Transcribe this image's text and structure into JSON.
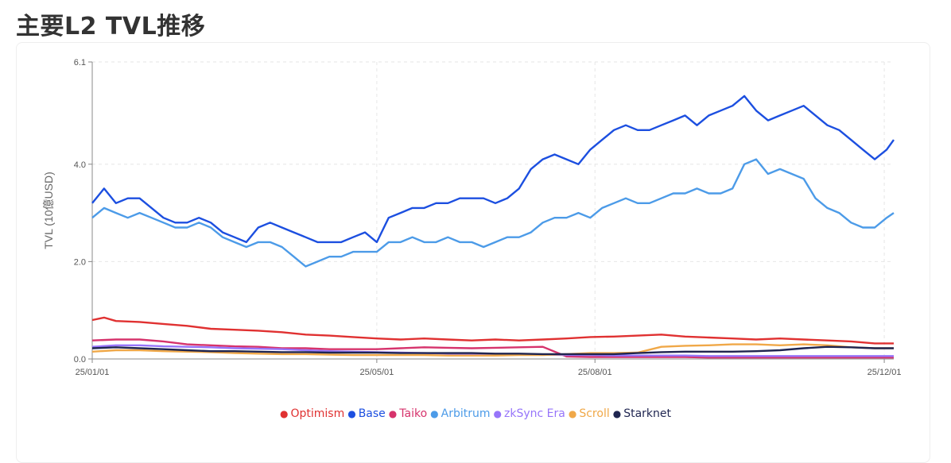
{
  "header": {
    "title": "主要L2 TVL推移"
  },
  "chart_data": {
    "type": "line",
    "title": "主要L2 TVL推移",
    "xlabel": "",
    "ylabel": "TVL (10億USD)",
    "ylim": [
      0,
      6.1
    ],
    "yticks": [
      {
        "value": 0,
        "label": "0.0"
      },
      {
        "value": 2,
        "label": "2.0"
      },
      {
        "value": 4,
        "label": "4.0"
      },
      {
        "value": 6.1,
        "label": "6.1"
      }
    ],
    "xlim": [
      0,
      338
    ],
    "xticks": [
      {
        "value": 0,
        "label": "25/01/01"
      },
      {
        "value": 120,
        "label": "25/05/01"
      },
      {
        "value": 212,
        "label": "25/08/01"
      },
      {
        "value": 334,
        "label": "25/12/01"
      }
    ],
    "grid": true,
    "legend_position": "bottom",
    "series": [
      {
        "name": "Optimism",
        "color": "#e03131",
        "x": [
          0,
          5,
          10,
          20,
          30,
          40,
          50,
          60,
          70,
          80,
          90,
          100,
          110,
          120,
          130,
          140,
          150,
          160,
          170,
          180,
          190,
          200,
          210,
          220,
          230,
          240,
          250,
          260,
          270,
          280,
          290,
          300,
          310,
          320,
          330,
          338
        ],
        "values": [
          0.8,
          0.85,
          0.78,
          0.76,
          0.72,
          0.68,
          0.62,
          0.6,
          0.58,
          0.55,
          0.5,
          0.48,
          0.45,
          0.42,
          0.4,
          0.42,
          0.4,
          0.38,
          0.4,
          0.38,
          0.4,
          0.42,
          0.45,
          0.46,
          0.48,
          0.5,
          0.46,
          0.44,
          0.42,
          0.4,
          0.42,
          0.4,
          0.38,
          0.36,
          0.32,
          0.32
        ]
      },
      {
        "name": "Base",
        "color": "#1c4fe0",
        "x": [
          0,
          5,
          10,
          15,
          20,
          25,
          30,
          35,
          40,
          45,
          50,
          55,
          60,
          65,
          70,
          75,
          80,
          85,
          90,
          95,
          100,
          105,
          110,
          115,
          120,
          125,
          130,
          135,
          140,
          145,
          150,
          155,
          160,
          165,
          170,
          175,
          180,
          185,
          190,
          195,
          200,
          205,
          210,
          215,
          220,
          225,
          230,
          235,
          240,
          245,
          250,
          255,
          260,
          265,
          270,
          275,
          280,
          285,
          290,
          295,
          300,
          305,
          310,
          315,
          320,
          325,
          330,
          335,
          338
        ],
        "values": [
          3.2,
          3.5,
          3.2,
          3.3,
          3.3,
          3.1,
          2.9,
          2.8,
          2.8,
          2.9,
          2.8,
          2.6,
          2.5,
          2.4,
          2.7,
          2.8,
          2.7,
          2.6,
          2.5,
          2.4,
          2.4,
          2.4,
          2.5,
          2.6,
          2.4,
          2.9,
          3.0,
          3.1,
          3.1,
          3.2,
          3.2,
          3.3,
          3.3,
          3.3,
          3.2,
          3.3,
          3.5,
          3.9,
          4.1,
          4.2,
          4.1,
          4.0,
          4.3,
          4.5,
          4.7,
          4.8,
          4.7,
          4.7,
          4.8,
          4.9,
          5.0,
          4.8,
          5.0,
          5.1,
          5.2,
          5.4,
          5.1,
          4.9,
          5.0,
          5.1,
          5.2,
          5.0,
          4.8,
          4.7,
          4.5,
          4.3,
          4.1,
          4.3,
          4.5
        ]
      },
      {
        "name": "Taiko",
        "color": "#d6336c",
        "x": [
          0,
          10,
          20,
          30,
          40,
          50,
          60,
          70,
          80,
          90,
          100,
          110,
          120,
          130,
          140,
          150,
          160,
          170,
          180,
          190,
          200,
          210,
          220,
          230,
          240,
          250,
          260,
          270,
          280,
          290,
          300,
          310,
          320,
          330,
          338
        ],
        "values": [
          0.38,
          0.4,
          0.4,
          0.36,
          0.3,
          0.28,
          0.26,
          0.25,
          0.22,
          0.22,
          0.2,
          0.2,
          0.2,
          0.22,
          0.24,
          0.23,
          0.22,
          0.23,
          0.24,
          0.25,
          0.05,
          0.04,
          0.04,
          0.04,
          0.04,
          0.04,
          0.03,
          0.03,
          0.03,
          0.03,
          0.03,
          0.03,
          0.03,
          0.03,
          0.03
        ]
      },
      {
        "name": "Arbitrum",
        "color": "#4c9be8",
        "x": [
          0,
          5,
          10,
          15,
          20,
          25,
          30,
          35,
          40,
          45,
          50,
          55,
          60,
          65,
          70,
          75,
          80,
          85,
          90,
          95,
          100,
          105,
          110,
          115,
          120,
          125,
          130,
          135,
          140,
          145,
          150,
          155,
          160,
          165,
          170,
          175,
          180,
          185,
          190,
          195,
          200,
          205,
          210,
          215,
          220,
          225,
          230,
          235,
          240,
          245,
          250,
          255,
          260,
          265,
          270,
          275,
          280,
          285,
          290,
          295,
          300,
          305,
          310,
          315,
          320,
          325,
          330,
          335,
          338
        ],
        "values": [
          2.9,
          3.1,
          3.0,
          2.9,
          3.0,
          2.9,
          2.8,
          2.7,
          2.7,
          2.8,
          2.7,
          2.5,
          2.4,
          2.3,
          2.4,
          2.4,
          2.3,
          2.1,
          1.9,
          2.0,
          2.1,
          2.1,
          2.2,
          2.2,
          2.2,
          2.4,
          2.4,
          2.5,
          2.4,
          2.4,
          2.5,
          2.4,
          2.4,
          2.3,
          2.4,
          2.5,
          2.5,
          2.6,
          2.8,
          2.9,
          2.9,
          3.0,
          2.9,
          3.1,
          3.2,
          3.3,
          3.2,
          3.2,
          3.3,
          3.4,
          3.4,
          3.5,
          3.4,
          3.4,
          3.5,
          4.0,
          4.1,
          3.8,
          3.9,
          3.8,
          3.7,
          3.3,
          3.1,
          3.0,
          2.8,
          2.7,
          2.7,
          2.9,
          3.0
        ]
      },
      {
        "name": "zkSync Era",
        "color": "#9775fa",
        "x": [
          0,
          10,
          20,
          30,
          40,
          50,
          60,
          70,
          80,
          90,
          100,
          110,
          120,
          130,
          140,
          150,
          160,
          170,
          180,
          190,
          200,
          210,
          220,
          230,
          240,
          250,
          260,
          270,
          280,
          290,
          300,
          310,
          320,
          330,
          338
        ],
        "values": [
          0.25,
          0.28,
          0.28,
          0.26,
          0.25,
          0.24,
          0.22,
          0.21,
          0.2,
          0.18,
          0.16,
          0.15,
          0.14,
          0.13,
          0.12,
          0.11,
          0.1,
          0.1,
          0.09,
          0.09,
          0.08,
          0.08,
          0.07,
          0.07,
          0.07,
          0.07,
          0.06,
          0.06,
          0.06,
          0.06,
          0.06,
          0.06,
          0.06,
          0.06,
          0.06
        ]
      },
      {
        "name": "Scroll",
        "color": "#f0a848",
        "x": [
          0,
          10,
          20,
          30,
          40,
          50,
          60,
          70,
          80,
          90,
          100,
          110,
          120,
          130,
          140,
          150,
          160,
          170,
          180,
          190,
          200,
          210,
          220,
          230,
          240,
          250,
          260,
          270,
          280,
          290,
          300,
          310,
          320,
          330,
          338
        ],
        "values": [
          0.15,
          0.18,
          0.18,
          0.16,
          0.15,
          0.14,
          0.12,
          0.11,
          0.1,
          0.1,
          0.09,
          0.08,
          0.08,
          0.08,
          0.08,
          0.07,
          0.07,
          0.07,
          0.08,
          0.08,
          0.1,
          0.12,
          0.12,
          0.13,
          0.25,
          0.27,
          0.28,
          0.3,
          0.3,
          0.28,
          0.3,
          0.28,
          0.24,
          0.22,
          0.22
        ]
      },
      {
        "name": "Starknet",
        "color": "#1f2550",
        "x": [
          0,
          10,
          20,
          30,
          40,
          50,
          60,
          70,
          80,
          90,
          100,
          110,
          120,
          130,
          140,
          150,
          160,
          170,
          180,
          190,
          200,
          210,
          220,
          230,
          240,
          250,
          260,
          270,
          280,
          290,
          300,
          310,
          320,
          330,
          338
        ],
        "values": [
          0.22,
          0.24,
          0.22,
          0.2,
          0.18,
          0.16,
          0.16,
          0.15,
          0.14,
          0.14,
          0.13,
          0.13,
          0.13,
          0.12,
          0.12,
          0.12,
          0.12,
          0.11,
          0.11,
          0.1,
          0.1,
          0.1,
          0.1,
          0.12,
          0.14,
          0.15,
          0.15,
          0.15,
          0.16,
          0.18,
          0.22,
          0.25,
          0.24,
          0.22,
          0.22
        ]
      }
    ]
  }
}
